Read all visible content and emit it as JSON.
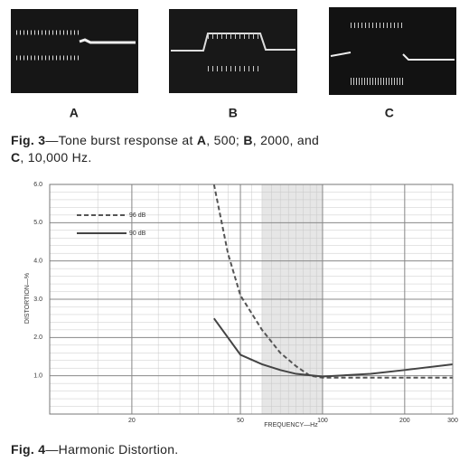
{
  "figure3": {
    "labels": [
      "A",
      "B",
      "C"
    ],
    "caption": [
      "Fig. 3",
      "—Tone burst response at ",
      "A",
      ", 500; ",
      "B",
      ", 2000, and ",
      "C",
      ", 10,000 Hz."
    ]
  },
  "chart_data": {
    "type": "line",
    "ylabel": "DISTORTION—%",
    "xlabel": "FREQUENCY—Hz",
    "log_x": true,
    "grid": true,
    "xlim": [
      10,
      300
    ],
    "xticks": [
      20,
      50,
      100,
      200,
      300
    ],
    "ylim": [
      0,
      6
    ],
    "yticks": [
      {
        "value": 1,
        "label": "1.0"
      },
      {
        "value": 2,
        "label": "2.0"
      },
      {
        "value": 3,
        "label": "3.0"
      },
      {
        "value": 4,
        "label": "4.0"
      },
      {
        "value": 5,
        "label": "5.0"
      },
      {
        "value": 6,
        "label": "6.0"
      }
    ],
    "legend": "upper left",
    "series": [
      {
        "name": "96 dB",
        "color": "#555555",
        "dashed": true,
        "x": [
          40,
          45,
          50,
          60,
          70,
          80,
          90,
          100,
          150,
          200,
          300
        ],
        "values": [
          6.0,
          4.2,
          3.1,
          2.2,
          1.6,
          1.25,
          1.0,
          0.95,
          0.95,
          0.95,
          0.95
        ]
      },
      {
        "name": "90 dB",
        "color": "#444444",
        "dashed": false,
        "x": [
          40,
          50,
          60,
          70,
          80,
          100,
          150,
          200,
          300
        ],
        "values": [
          2.5,
          1.55,
          1.3,
          1.15,
          1.05,
          0.98,
          1.05,
          1.15,
          1.3
        ]
      }
    ]
  },
  "figure4": {
    "caption": [
      "Fig. 4",
      "—Harmonic Distortion."
    ]
  }
}
